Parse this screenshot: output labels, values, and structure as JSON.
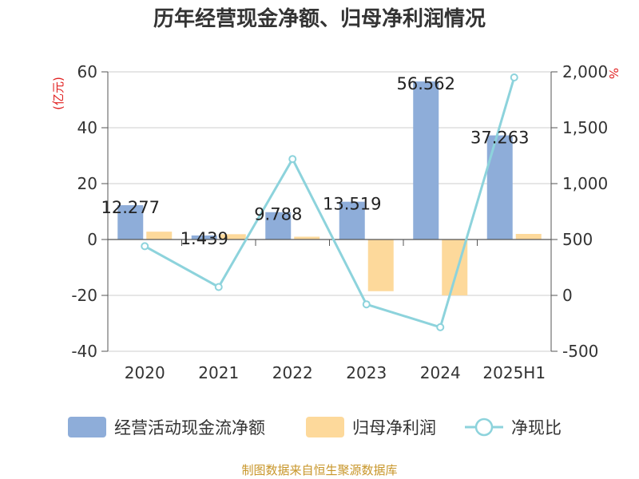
{
  "chart_data": {
    "type": "bar",
    "title": "历年经营现金净额、归母净利润情况",
    "categories": [
      "2020",
      "2021",
      "2022",
      "2023",
      "2024",
      "2025H1"
    ],
    "y_left": {
      "unit": "(亿元)",
      "range": [
        -40,
        60
      ],
      "ticks": [
        -40,
        -20,
        0,
        20,
        40,
        60
      ]
    },
    "y_right": {
      "unit": "%",
      "range": [
        -500,
        2000
      ],
      "ticks": [
        "-500",
        "0",
        "500",
        "1,000",
        "1,500",
        "2,000"
      ],
      "tick_values": [
        -500,
        0,
        500,
        1000,
        1500,
        2000
      ]
    },
    "series": [
      {
        "name": "经营活动现金流净额",
        "kind": "bar",
        "axis": "left",
        "color": "#8eadd9",
        "values": [
          12.277,
          1.439,
          9.788,
          13.519,
          56.562,
          37.263
        ],
        "labels": [
          "12.277",
          "1.439",
          "9.788",
          "13.519",
          "56.562",
          "37.263"
        ]
      },
      {
        "name": "归母净利润",
        "kind": "bar",
        "axis": "left",
        "color": "#fdd99b",
        "values": [
          2.8,
          1.9,
          1.0,
          -18.5,
          -20.0,
          2.0
        ]
      },
      {
        "name": "净现比",
        "kind": "line",
        "axis": "right",
        "color": "#8dd3dc",
        "values": [
          440,
          75,
          1220,
          -80,
          -285,
          1950
        ]
      }
    ],
    "grid": true,
    "legend_position": "bottom"
  },
  "source": "制图数据来自恒生聚源数据库"
}
